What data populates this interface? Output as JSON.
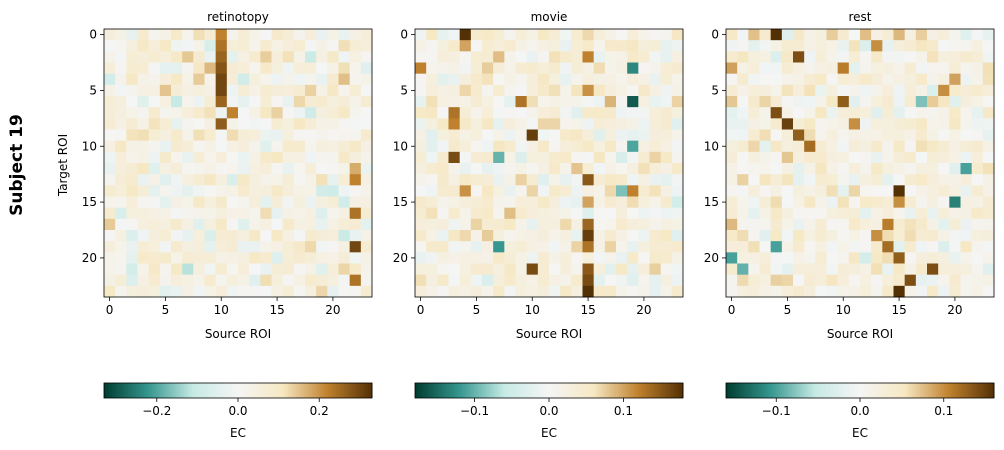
{
  "figure": {
    "row_label": "Subject 19",
    "ylabel": "Target ROI",
    "xlabel": "Source ROI",
    "colorbar_label": "EC",
    "colormap": "BrBG (reversed): teal for negative, white at 0, brown for positive",
    "colormap_stops": [
      "#003c30",
      "#35978f",
      "#c7eae5",
      "#f5f5f5",
      "#f6e8c3",
      "#bf812d",
      "#543005"
    ]
  },
  "chart_data": [
    {
      "type": "heatmap",
      "title": "retinotopy",
      "xlabel": "Source ROI",
      "ylabel": "Target ROI",
      "n": 24,
      "xticks": [
        0,
        5,
        10,
        15,
        20
      ],
      "yticks": [
        0,
        5,
        10,
        15,
        20
      ],
      "vmin": -0.33,
      "vmax": 0.33,
      "colorbar_ticks": [
        -0.2,
        0.0,
        0.2
      ],
      "colorbar_ticklabels": [
        "−0.2",
        "0.0",
        "0.2"
      ],
      "colorbar_label": "EC",
      "hot_cells": [
        [
          0,
          10,
          0.22
        ],
        [
          1,
          10,
          0.24
        ],
        [
          2,
          10,
          0.26
        ],
        [
          3,
          10,
          0.28
        ],
        [
          4,
          10,
          0.3
        ],
        [
          5,
          10,
          0.3
        ],
        [
          6,
          10,
          0.26
        ],
        [
          8,
          10,
          0.27
        ],
        [
          4,
          8,
          0.14
        ],
        [
          3,
          9,
          0.16
        ],
        [
          7,
          11,
          0.22
        ],
        [
          0,
          8,
          0.12
        ],
        [
          13,
          22,
          0.22
        ],
        [
          16,
          22,
          0.24
        ],
        [
          19,
          22,
          0.3
        ],
        [
          22,
          22,
          0.24
        ],
        [
          12,
          3,
          0.11
        ],
        [
          2,
          18,
          -0.1
        ],
        [
          6,
          6,
          -0.11
        ],
        [
          21,
          7,
          -0.12
        ],
        [
          18,
          21,
          -0.1
        ],
        [
          7,
          18,
          -0.09
        ],
        [
          14,
          20,
          -0.09
        ]
      ]
    },
    {
      "type": "heatmap",
      "title": "movie",
      "xlabel": "Source ROI",
      "ylabel": "",
      "n": 24,
      "xticks": [
        0,
        5,
        10,
        15,
        20
      ],
      "yticks": [
        0,
        5,
        10,
        15,
        20
      ],
      "vmin": -0.18,
      "vmax": 0.18,
      "colorbar_ticks": [
        -0.1,
        0.0,
        0.1
      ],
      "colorbar_ticklabels": [
        "−0.1",
        "0.0",
        "0.1"
      ],
      "colorbar_label": "EC",
      "hot_cells": [
        [
          0,
          4,
          0.18
        ],
        [
          1,
          4,
          0.1
        ],
        [
          3,
          0,
          0.12
        ],
        [
          7,
          3,
          0.13
        ],
        [
          9,
          10,
          0.17
        ],
        [
          11,
          3,
          0.16
        ],
        [
          14,
          4,
          0.11
        ],
        [
          13,
          15,
          0.15
        ],
        [
          14,
          19,
          0.12
        ],
        [
          15,
          15,
          0.1
        ],
        [
          17,
          15,
          0.14
        ],
        [
          18,
          15,
          0.17
        ],
        [
          19,
          15,
          0.13
        ],
        [
          21,
          15,
          0.15
        ],
        [
          22,
          15,
          0.16
        ],
        [
          23,
          15,
          0.18
        ],
        [
          21,
          10,
          0.16
        ],
        [
          6,
          9,
          0.13
        ],
        [
          2,
          15,
          0.12
        ],
        [
          5,
          15,
          0.11
        ],
        [
          3,
          19,
          -0.13
        ],
        [
          6,
          19,
          -0.16
        ],
        [
          10,
          19,
          -0.11
        ],
        [
          19,
          7,
          -0.12
        ],
        [
          11,
          7,
          -0.1
        ],
        [
          14,
          18,
          -0.09
        ],
        [
          8,
          3,
          0.12
        ]
      ]
    },
    {
      "type": "heatmap",
      "title": "rest",
      "xlabel": "Source ROI",
      "ylabel": "",
      "n": 24,
      "xticks": [
        0,
        5,
        10,
        15,
        20
      ],
      "yticks": [
        0,
        5,
        10,
        15,
        20
      ],
      "vmin": -0.16,
      "vmax": 0.16,
      "colorbar_ticks": [
        -0.1,
        0.0,
        0.1
      ],
      "colorbar_ticklabels": [
        "−0.1",
        "0.0",
        "0.1"
      ],
      "colorbar_label": "EC",
      "hot_cells": [
        [
          0,
          4,
          0.16
        ],
        [
          1,
          13,
          0.1
        ],
        [
          2,
          6,
          0.14
        ],
        [
          3,
          0,
          0.09
        ],
        [
          6,
          10,
          0.13
        ],
        [
          7,
          4,
          0.14
        ],
        [
          8,
          5,
          0.15
        ],
        [
          9,
          6,
          0.13
        ],
        [
          10,
          7,
          0.12
        ],
        [
          14,
          15,
          0.16
        ],
        [
          15,
          15,
          0.1
        ],
        [
          17,
          14,
          0.11
        ],
        [
          18,
          13,
          0.1
        ],
        [
          19,
          14,
          0.12
        ],
        [
          20,
          15,
          0.13
        ],
        [
          22,
          16,
          0.14
        ],
        [
          23,
          15,
          0.16
        ],
        [
          21,
          18,
          0.14
        ],
        [
          5,
          19,
          0.1
        ],
        [
          4,
          20,
          0.09
        ],
        [
          8,
          11,
          0.1
        ],
        [
          3,
          10,
          0.11
        ],
        [
          12,
          21,
          -0.1
        ],
        [
          15,
          20,
          -0.12
        ],
        [
          19,
          4,
          -0.1
        ],
        [
          20,
          0,
          -0.1
        ],
        [
          21,
          1,
          -0.09
        ],
        [
          6,
          17,
          -0.08
        ]
      ]
    }
  ]
}
